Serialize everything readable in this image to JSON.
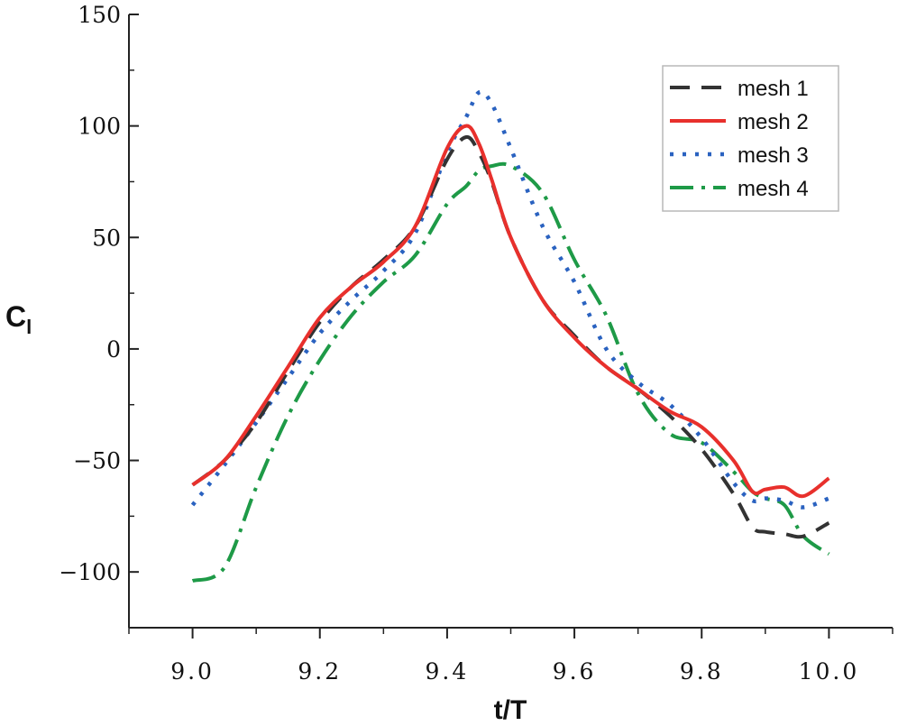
{
  "chart_data": {
    "type": "line",
    "title": "",
    "xlabel": "t/T",
    "ylabel_main": "C",
    "ylabel_sub": "l",
    "xlim": [
      8.9,
      10.1
    ],
    "ylim": [
      -125,
      150
    ],
    "xticks": [
      9.0,
      9.2,
      9.4,
      9.6,
      9.8,
      10.0
    ],
    "xtick_labels": [
      "9.0",
      "9.2",
      "9.4",
      "9.6",
      "9.8",
      "10.0"
    ],
    "yticks": [
      -100,
      -50,
      0,
      50,
      100,
      150
    ],
    "ytick_labels": [
      "−100",
      "−50",
      "0",
      "50",
      "100",
      "150"
    ],
    "grid": false,
    "legend": "top-right",
    "x": [
      9.0,
      9.05,
      9.1,
      9.15,
      9.2,
      9.25,
      9.3,
      9.35,
      9.4,
      9.43,
      9.45,
      9.47,
      9.5,
      9.55,
      9.6,
      9.65,
      9.7,
      9.75,
      9.8,
      9.85,
      9.88,
      9.9,
      9.93,
      9.96,
      10.0
    ],
    "series": [
      {
        "name": "mesh 1",
        "color": "#333333",
        "dash": "22,13",
        "width": 4,
        "values": [
          -61,
          -50,
          -33,
          -10,
          12,
          28,
          40,
          55,
          85,
          95,
          88,
          75,
          50,
          22,
          6,
          -8,
          -18,
          -30,
          -45,
          -65,
          -80,
          -82,
          -83,
          -84,
          -78
        ]
      },
      {
        "name": "mesh 2",
        "color": "#e8302c",
        "dash": "",
        "width": 4,
        "values": [
          -61,
          -50,
          -30,
          -8,
          14,
          28,
          39,
          55,
          90,
          100,
          92,
          76,
          50,
          22,
          5,
          -8,
          -18,
          -28,
          -35,
          -50,
          -64,
          -63,
          -62,
          -66,
          -58
        ]
      },
      {
        "name": "mesh 3",
        "color": "#2a62c0",
        "dash": "4,10",
        "width": 4.5,
        "values": [
          -70,
          -52,
          -33,
          -13,
          7,
          22,
          35,
          52,
          88,
          104,
          115,
          110,
          90,
          55,
          30,
          0,
          -15,
          -25,
          -40,
          -60,
          -68,
          -67,
          -68,
          -71,
          -67
        ]
      },
      {
        "name": "mesh 4",
        "color": "#1e9a47",
        "dash": "26,9,4,9",
        "width": 4,
        "values": [
          -104,
          -98,
          -62,
          -30,
          -5,
          15,
          30,
          42,
          65,
          73,
          80,
          82,
          82,
          70,
          40,
          15,
          -20,
          -38,
          -42,
          -55,
          -64,
          -67,
          -70,
          -84,
          -92
        ]
      }
    ]
  }
}
